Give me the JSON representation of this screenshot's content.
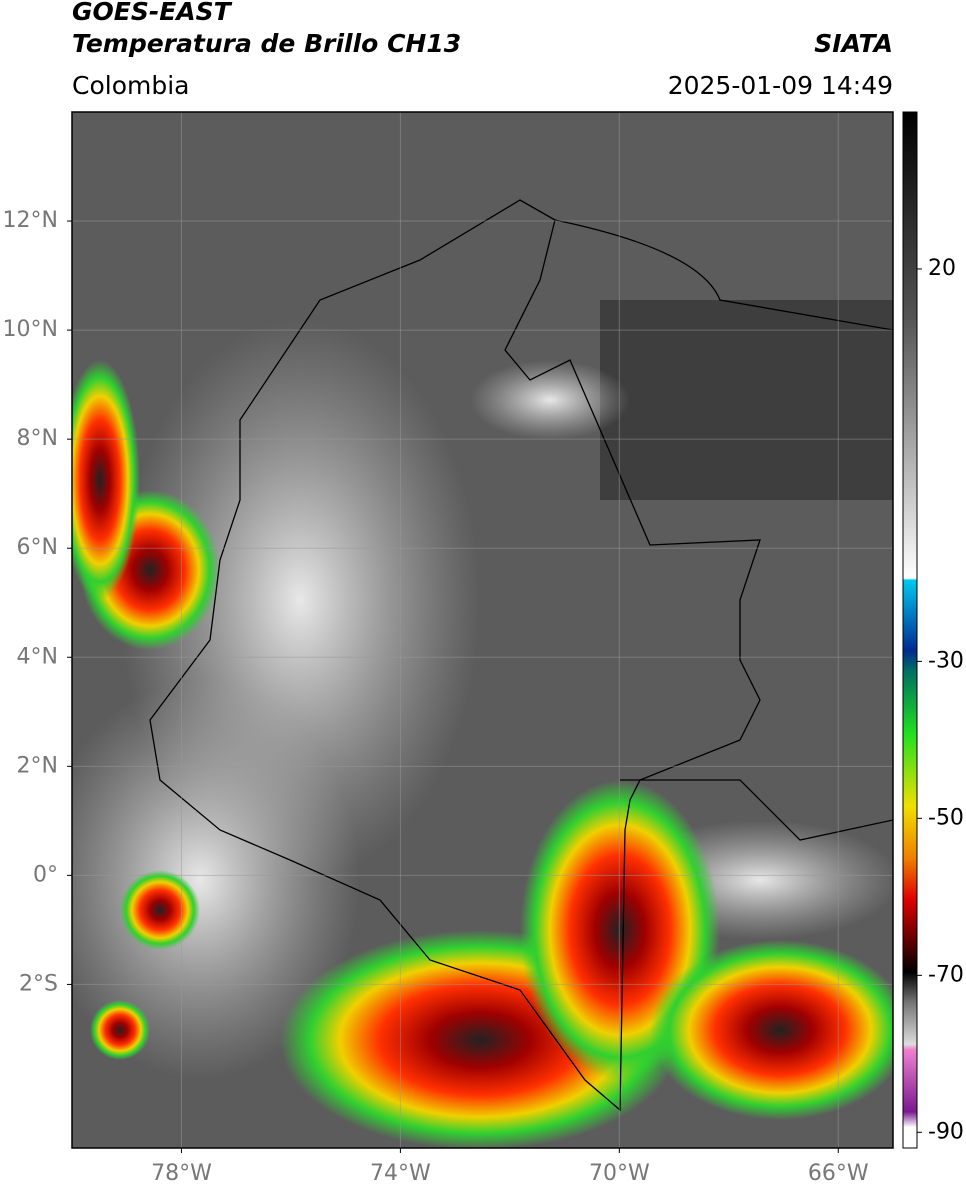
{
  "header": {
    "satellite": "GOES-EAST",
    "product": "Temperatura de Brillo CH13",
    "region": "Colombia",
    "source": "SIATA",
    "timestamp": "2025-01-09 14:49"
  },
  "map": {
    "lonlim": [
      -80,
      -65
    ],
    "latlim": [
      -5,
      14
    ],
    "lat_ticks": [
      {
        "value": 12,
        "label": "12°N"
      },
      {
        "value": 10,
        "label": "10°N"
      },
      {
        "value": 8,
        "label": "8°N"
      },
      {
        "value": 6,
        "label": "6°N"
      },
      {
        "value": 4,
        "label": "4°N"
      },
      {
        "value": 2,
        "label": "2°N"
      },
      {
        "value": 0,
        "label": "0°"
      },
      {
        "value": -2,
        "label": "2°S"
      }
    ],
    "lon_ticks": [
      {
        "value": -78,
        "label": "78°W"
      },
      {
        "value": -74,
        "label": "74°W"
      },
      {
        "value": -70,
        "label": "70°W"
      },
      {
        "value": -66,
        "label": "66°W"
      }
    ],
    "grid": true
  },
  "colorbar": {
    "clim": [
      -92,
      40
    ],
    "ticks": [
      20,
      -30,
      -50,
      -70,
      -90
    ]
  }
}
